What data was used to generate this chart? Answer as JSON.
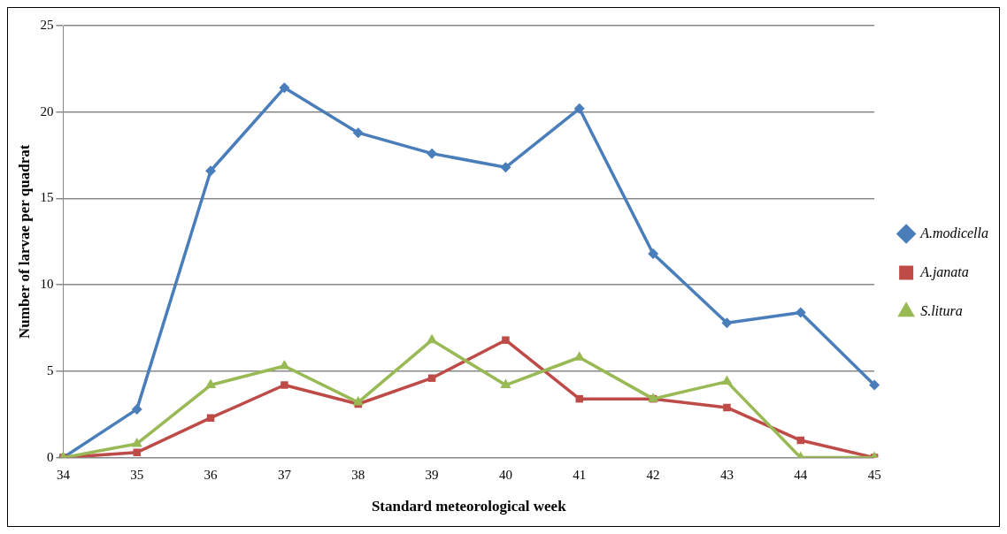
{
  "chart_data": {
    "type": "line",
    "xlabel": "Standard meteorological week",
    "ylabel": "Number of larvae per quadrat",
    "categories": [
      "34",
      "35",
      "36",
      "37",
      "38",
      "39",
      "40",
      "41",
      "42",
      "43",
      "44",
      "45"
    ],
    "series": [
      {
        "name": "A.modicella",
        "color": "#4a7ebb",
        "marker": "diamond",
        "values": [
          0,
          2.8,
          16.6,
          21.4,
          18.8,
          17.6,
          16.8,
          20.2,
          11.8,
          7.8,
          8.4,
          4.2
        ]
      },
      {
        "name": "A.janata",
        "color": "#be4b48",
        "marker": "square",
        "values": [
          0,
          0.3,
          2.3,
          4.2,
          3.1,
          4.6,
          6.8,
          3.4,
          3.4,
          2.9,
          1.0,
          0
        ]
      },
      {
        "name": "S.litura",
        "color": "#98b954",
        "marker": "triangle",
        "values": [
          0,
          0.8,
          4.2,
          5.3,
          3.2,
          6.8,
          4.2,
          5.8,
          3.4,
          4.4,
          0,
          0
        ]
      }
    ],
    "ylim": [
      0,
      25
    ],
    "yticks": [
      0,
      5,
      10,
      15,
      20,
      25
    ],
    "grid": "y",
    "legend": "right",
    "line_style": "solid"
  }
}
